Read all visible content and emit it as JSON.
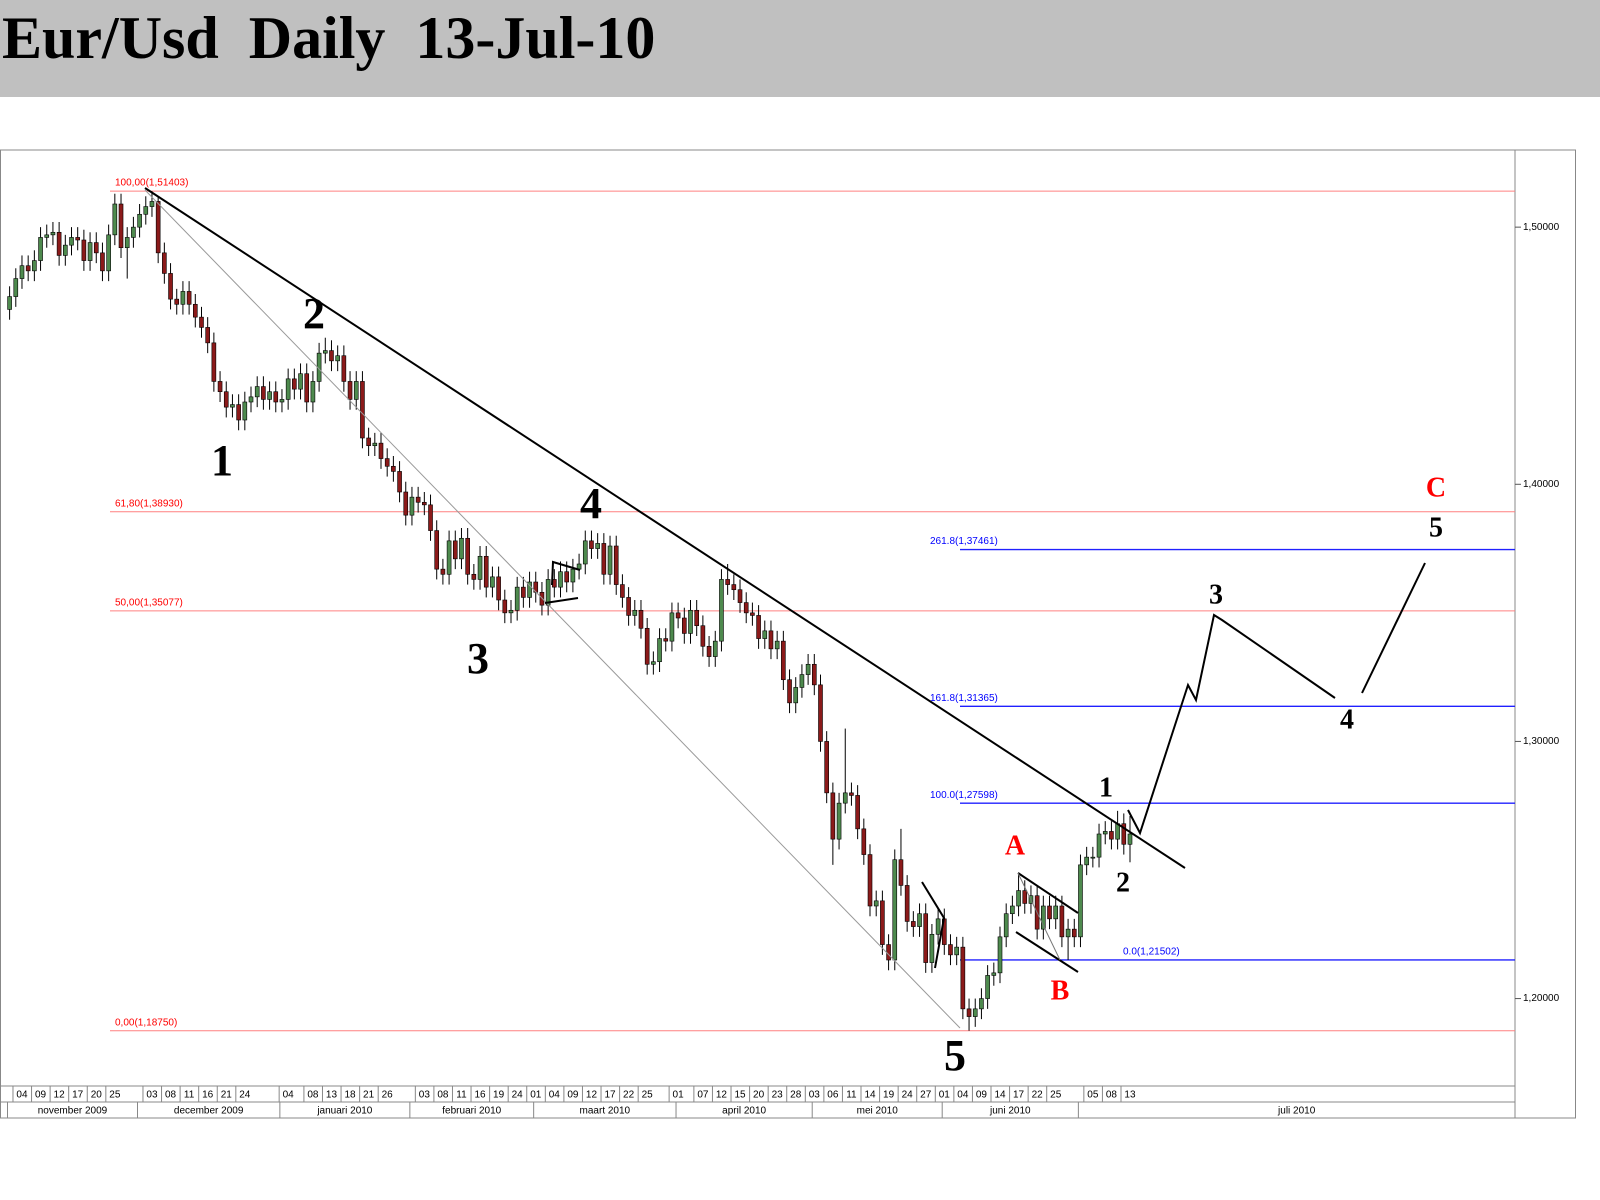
{
  "chart_data": {
    "type": "candlestick",
    "title": "Eur/Usd  Daily  13-Jul-10",
    "ylim": [
      1.166,
      1.53
    ],
    "yticks": [
      {
        "value": 1.2,
        "label": "1,20000"
      },
      {
        "value": 1.3,
        "label": "1,30000"
      },
      {
        "value": 1.4,
        "label": "1,40000"
      },
      {
        "value": 1.5,
        "label": "1,50000"
      }
    ],
    "up_color": "#4e8a4e",
    "down_color": "#8b1a1a",
    "categories": [
      null,
      null,
      "04",
      null,
      null,
      "09",
      null,
      null,
      "12",
      null,
      null,
      "17",
      null,
      null,
      "20",
      null,
      null,
      "25",
      null,
      null,
      null,
      null,
      null,
      "03",
      null,
      null,
      "08",
      null,
      null,
      "11",
      null,
      null,
      "16",
      null,
      null,
      "21",
      null,
      null,
      "24",
      null,
      null,
      null,
      null,
      null,
      null,
      "04",
      null,
      null,
      null,
      "08",
      null,
      null,
      "13",
      null,
      null,
      "18",
      null,
      null,
      "21",
      null,
      null,
      "26",
      null,
      null,
      null,
      null,
      null,
      "03",
      null,
      null,
      "08",
      null,
      null,
      "11",
      null,
      null,
      "16",
      null,
      null,
      "19",
      null,
      null,
      "24",
      null,
      null,
      "01",
      null,
      null,
      "04",
      null,
      null,
      "09",
      null,
      null,
      "12",
      null,
      null,
      "17",
      null,
      null,
      "22",
      null,
      null,
      "25",
      null,
      null,
      null,
      null,
      "01",
      null,
      null,
      null,
      "07",
      null,
      null,
      "12",
      null,
      null,
      "15",
      null,
      null,
      "20",
      null,
      null,
      "23",
      null,
      null,
      "28",
      null,
      null,
      "03",
      null,
      null,
      "06",
      null,
      null,
      "11",
      null,
      null,
      "14",
      null,
      null,
      "19",
      null,
      null,
      "24",
      null,
      null,
      "27",
      null,
      null,
      "01",
      null,
      null,
      "04",
      null,
      null,
      "09",
      null,
      null,
      "14",
      null,
      null,
      "17",
      null,
      null,
      "22",
      null,
      null,
      "25",
      null,
      null,
      null,
      null,
      null,
      "05",
      null,
      null,
      "08",
      null,
      null,
      "13"
    ],
    "months": [
      {
        "label": "november 2009",
        "start": 0
      },
      {
        "label": "december 2009",
        "start": 21
      },
      {
        "label": "januari 2010",
        "start": 44
      },
      {
        "label": "februari 2010",
        "start": 65
      },
      {
        "label": "maart 2010",
        "start": 85
      },
      {
        "label": "april 2010",
        "start": 108
      },
      {
        "label": "mei 2010",
        "start": 130
      },
      {
        "label": "juni 2010",
        "start": 151
      },
      {
        "label": "juli 2010",
        "start": 173
      }
    ],
    "candles": [
      [
        1.468,
        1.477,
        1.464,
        1.473
      ],
      [
        1.473,
        1.484,
        1.469,
        1.48
      ],
      [
        1.48,
        1.489,
        1.476,
        1.485
      ],
      [
        1.485,
        1.489,
        1.479,
        1.483
      ],
      [
        1.483,
        1.491,
        1.479,
        1.487
      ],
      [
        1.487,
        1.5,
        1.483,
        1.496
      ],
      [
        1.496,
        1.501,
        1.492,
        1.497
      ],
      [
        1.497,
        1.502,
        1.493,
        1.498
      ],
      [
        1.498,
        1.502,
        1.485,
        1.489
      ],
      [
        1.489,
        1.497,
        1.485,
        1.493
      ],
      [
        1.493,
        1.5,
        1.489,
        1.496
      ],
      [
        1.496,
        1.5,
        1.491,
        1.495
      ],
      [
        1.495,
        1.499,
        1.483,
        1.487
      ],
      [
        1.487,
        1.498,
        1.483,
        1.494
      ],
      [
        1.494,
        1.498,
        1.486,
        1.49
      ],
      [
        1.49,
        1.494,
        1.479,
        1.483
      ],
      [
        1.483,
        1.501,
        1.479,
        1.497
      ],
      [
        1.497,
        1.513,
        1.493,
        1.509
      ],
      [
        1.509,
        1.513,
        1.488,
        1.492
      ],
      [
        1.492,
        1.5,
        1.48,
        1.496
      ],
      [
        1.496,
        1.504,
        1.492,
        1.5
      ],
      [
        1.5,
        1.509,
        1.496,
        1.505
      ],
      [
        1.505,
        1.512,
        1.501,
        1.508
      ],
      [
        1.508,
        1.514,
        1.504,
        1.51
      ],
      [
        1.51,
        1.512,
        1.486,
        1.49
      ],
      [
        1.49,
        1.494,
        1.478,
        1.482
      ],
      [
        1.482,
        1.486,
        1.468,
        1.472
      ],
      [
        1.472,
        1.476,
        1.466,
        1.47
      ],
      [
        1.47,
        1.479,
        1.466,
        1.475
      ],
      [
        1.475,
        1.479,
        1.466,
        1.47
      ],
      [
        1.47,
        1.474,
        1.461,
        1.465
      ],
      [
        1.465,
        1.469,
        1.457,
        1.461
      ],
      [
        1.461,
        1.465,
        1.451,
        1.455
      ],
      [
        1.455,
        1.459,
        1.436,
        1.44
      ],
      [
        1.44,
        1.444,
        1.432,
        1.436
      ],
      [
        1.436,
        1.44,
        1.426,
        1.43
      ],
      [
        1.43,
        1.435,
        1.426,
        1.431
      ],
      [
        1.431,
        1.435,
        1.421,
        1.425
      ],
      [
        1.425,
        1.436,
        1.421,
        1.432
      ],
      [
        1.432,
        1.438,
        1.428,
        1.434
      ],
      [
        1.434,
        1.442,
        1.43,
        1.438
      ],
      [
        1.438,
        1.442,
        1.429,
        1.433
      ],
      [
        1.433,
        1.44,
        1.429,
        1.436
      ],
      [
        1.436,
        1.44,
        1.428,
        1.432
      ],
      [
        1.432,
        1.437,
        1.428,
        1.433
      ],
      [
        1.433,
        1.445,
        1.429,
        1.441
      ],
      [
        1.441,
        1.445,
        1.433,
        1.437
      ],
      [
        1.437,
        1.447,
        1.433,
        1.443
      ],
      [
        1.443,
        1.447,
        1.428,
        1.432
      ],
      [
        1.432,
        1.444,
        1.428,
        1.44
      ],
      [
        1.44,
        1.455,
        1.436,
        1.451
      ],
      [
        1.451,
        1.457,
        1.447,
        1.452
      ],
      [
        1.452,
        1.456,
        1.444,
        1.448
      ],
      [
        1.448,
        1.454,
        1.444,
        1.45
      ],
      [
        1.45,
        1.454,
        1.436,
        1.44
      ],
      [
        1.44,
        1.444,
        1.429,
        1.433
      ],
      [
        1.433,
        1.444,
        1.429,
        1.44
      ],
      [
        1.44,
        1.444,
        1.414,
        1.418
      ],
      [
        1.418,
        1.422,
        1.411,
        1.415
      ],
      [
        1.415,
        1.42,
        1.411,
        1.416
      ],
      [
        1.416,
        1.42,
        1.406,
        1.41
      ],
      [
        1.41,
        1.414,
        1.403,
        1.407
      ],
      [
        1.407,
        1.411,
        1.401,
        1.405
      ],
      [
        1.405,
        1.409,
        1.393,
        1.397
      ],
      [
        1.397,
        1.401,
        1.384,
        1.388
      ],
      [
        1.388,
        1.399,
        1.384,
        1.395
      ],
      [
        1.395,
        1.399,
        1.389,
        1.393
      ],
      [
        1.393,
        1.397,
        1.388,
        1.392
      ],
      [
        1.392,
        1.396,
        1.378,
        1.382
      ],
      [
        1.382,
        1.386,
        1.363,
        1.367
      ],
      [
        1.367,
        1.371,
        1.361,
        1.365
      ],
      [
        1.365,
        1.382,
        1.361,
        1.378
      ],
      [
        1.378,
        1.382,
        1.367,
        1.371
      ],
      [
        1.371,
        1.383,
        1.367,
        1.379
      ],
      [
        1.379,
        1.383,
        1.361,
        1.365
      ],
      [
        1.365,
        1.369,
        1.359,
        1.363
      ],
      [
        1.363,
        1.376,
        1.359,
        1.372
      ],
      [
        1.372,
        1.376,
        1.356,
        1.36
      ],
      [
        1.36,
        1.368,
        1.356,
        1.364
      ],
      [
        1.364,
        1.368,
        1.351,
        1.355
      ],
      [
        1.355,
        1.359,
        1.346,
        1.35
      ],
      [
        1.35,
        1.355,
        1.346,
        1.351
      ],
      [
        1.351,
        1.364,
        1.347,
        1.36
      ],
      [
        1.36,
        1.364,
        1.352,
        1.356
      ],
      [
        1.356,
        1.366,
        1.352,
        1.362
      ],
      [
        1.362,
        1.366,
        1.354,
        1.358
      ],
      [
        1.358,
        1.362,
        1.349,
        1.353
      ],
      [
        1.353,
        1.367,
        1.349,
        1.363
      ],
      [
        1.363,
        1.367,
        1.356,
        1.36
      ],
      [
        1.36,
        1.37,
        1.356,
        1.366
      ],
      [
        1.366,
        1.37,
        1.358,
        1.362
      ],
      [
        1.362,
        1.371,
        1.358,
        1.367
      ],
      [
        1.367,
        1.373,
        1.363,
        1.369
      ],
      [
        1.369,
        1.382,
        1.365,
        1.378
      ],
      [
        1.378,
        1.382,
        1.371,
        1.375
      ],
      [
        1.375,
        1.381,
        1.371,
        1.377
      ],
      [
        1.377,
        1.381,
        1.361,
        1.365
      ],
      [
        1.365,
        1.38,
        1.361,
        1.376
      ],
      [
        1.376,
        1.38,
        1.357,
        1.361
      ],
      [
        1.361,
        1.365,
        1.352,
        1.356
      ],
      [
        1.356,
        1.36,
        1.345,
        1.349
      ],
      [
        1.349,
        1.355,
        1.345,
        1.351
      ],
      [
        1.351,
        1.355,
        1.34,
        1.344
      ],
      [
        1.344,
        1.348,
        1.326,
        1.33
      ],
      [
        1.33,
        1.335,
        1.326,
        1.331
      ],
      [
        1.331,
        1.344,
        1.327,
        1.34
      ],
      [
        1.34,
        1.344,
        1.335,
        1.339
      ],
      [
        1.339,
        1.354,
        1.335,
        1.35
      ],
      [
        1.35,
        1.354,
        1.344,
        1.348
      ],
      [
        1.348,
        1.352,
        1.338,
        1.342
      ],
      [
        1.342,
        1.355,
        1.338,
        1.351
      ],
      [
        1.351,
        1.355,
        1.341,
        1.345
      ],
      [
        1.345,
        1.349,
        1.333,
        1.337
      ],
      [
        1.337,
        1.341,
        1.329,
        1.333
      ],
      [
        1.333,
        1.343,
        1.329,
        1.339
      ],
      [
        1.339,
        1.367,
        1.335,
        1.363
      ],
      [
        1.363,
        1.369,
        1.357,
        1.361
      ],
      [
        1.361,
        1.365,
        1.355,
        1.359
      ],
      [
        1.359,
        1.363,
        1.35,
        1.354
      ],
      [
        1.354,
        1.358,
        1.346,
        1.35
      ],
      [
        1.35,
        1.354,
        1.345,
        1.349
      ],
      [
        1.349,
        1.353,
        1.336,
        1.34
      ],
      [
        1.34,
        1.347,
        1.336,
        1.343
      ],
      [
        1.343,
        1.347,
        1.332,
        1.336
      ],
      [
        1.336,
        1.343,
        1.332,
        1.339
      ],
      [
        1.339,
        1.343,
        1.32,
        1.324
      ],
      [
        1.324,
        1.328,
        1.311,
        1.315
      ],
      [
        1.315,
        1.325,
        1.311,
        1.321
      ],
      [
        1.321,
        1.33,
        1.317,
        1.326
      ],
      [
        1.326,
        1.334,
        1.322,
        1.33
      ],
      [
        1.33,
        1.334,
        1.318,
        1.322
      ],
      [
        1.322,
        1.326,
        1.296,
        1.3
      ],
      [
        1.3,
        1.304,
        1.276,
        1.28
      ],
      [
        1.28,
        1.284,
        1.252,
        1.262
      ],
      [
        1.262,
        1.28,
        1.258,
        1.276
      ],
      [
        1.276,
        1.305,
        1.272,
        1.28
      ],
      [
        1.28,
        1.284,
        1.275,
        1.279
      ],
      [
        1.279,
        1.283,
        1.262,
        1.266
      ],
      [
        1.266,
        1.27,
        1.252,
        1.256
      ],
      [
        1.256,
        1.26,
        1.232,
        1.236
      ],
      [
        1.236,
        1.242,
        1.232,
        1.238
      ],
      [
        1.238,
        1.242,
        1.217,
        1.221
      ],
      [
        1.221,
        1.225,
        1.211,
        1.215
      ],
      [
        1.215,
        1.258,
        1.211,
        1.254
      ],
      [
        1.254,
        1.266,
        1.24,
        1.244
      ],
      [
        1.244,
        1.248,
        1.226,
        1.23
      ],
      [
        1.23,
        1.234,
        1.224,
        1.228
      ],
      [
        1.228,
        1.237,
        1.224,
        1.233
      ],
      [
        1.233,
        1.237,
        1.21,
        1.214
      ],
      [
        1.214,
        1.229,
        1.21,
        1.225
      ],
      [
        1.225,
        1.235,
        1.221,
        1.231
      ],
      [
        1.231,
        1.235,
        1.217,
        1.221
      ],
      [
        1.221,
        1.225,
        1.213,
        1.217
      ],
      [
        1.217,
        1.224,
        1.213,
        1.22
      ],
      [
        1.22,
        1.224,
        1.192,
        1.196
      ],
      [
        1.196,
        1.2,
        1.1875,
        1.193
      ],
      [
        1.193,
        1.2,
        1.189,
        1.196
      ],
      [
        1.196,
        1.204,
        1.192,
        1.2
      ],
      [
        1.2,
        1.213,
        1.196,
        1.209
      ],
      [
        1.209,
        1.214,
        1.205,
        1.21
      ],
      [
        1.21,
        1.228,
        1.206,
        1.224
      ],
      [
        1.224,
        1.237,
        1.22,
        1.233
      ],
      [
        1.233,
        1.24,
        1.229,
        1.236
      ],
      [
        1.236,
        1.249,
        1.232,
        1.242
      ],
      [
        1.242,
        1.246,
        1.233,
        1.237
      ],
      [
        1.237,
        1.244,
        1.233,
        1.24
      ],
      [
        1.24,
        1.244,
        1.223,
        1.227
      ],
      [
        1.227,
        1.24,
        1.223,
        1.236
      ],
      [
        1.236,
        1.24,
        1.227,
        1.231
      ],
      [
        1.231,
        1.24,
        1.227,
        1.236
      ],
      [
        1.236,
        1.24,
        1.22,
        1.224
      ],
      [
        1.224,
        1.231,
        1.215,
        1.227
      ],
      [
        1.227,
        1.231,
        1.22,
        1.224
      ],
      [
        1.224,
        1.256,
        1.22,
        1.252
      ],
      [
        1.252,
        1.259,
        1.248,
        1.255
      ],
      [
        1.255,
        1.259,
        1.251,
        1.255
      ],
      [
        1.255,
        1.268,
        1.251,
        1.264
      ],
      [
        1.264,
        1.269,
        1.26,
        1.265
      ],
      [
        1.265,
        1.269,
        1.258,
        1.262
      ],
      [
        1.262,
        1.273,
        1.258,
        1.268
      ],
      [
        1.268,
        1.272,
        1.256,
        1.26
      ],
      [
        1.26,
        1.271,
        1.253,
        1.264
      ]
    ],
    "fib_levels": [
      {
        "value": 1.51403,
        "label": "100,00(1,51403)",
        "color": "#ff0000"
      },
      {
        "value": 1.3893,
        "label": "61,80(1,38930)",
        "color": "#ff0000"
      },
      {
        "value": 1.35077,
        "label": "50,00(1,35077)",
        "color": "#ff0000"
      },
      {
        "value": 1.1875,
        "label": "0,00(1,18750)",
        "color": "#ff0000"
      },
      {
        "value": 1.37461,
        "label": "261.8(1,37461)",
        "color": "#0000ff"
      },
      {
        "value": 1.31365,
        "label": "161.8(1,31365)",
        "color": "#0000ff"
      },
      {
        "value": 1.27598,
        "label": "100.0(1,27598)",
        "color": "#0000ff"
      },
      {
        "value": 1.21502,
        "label": "0.0(1,21502)",
        "color": "#0000ff"
      }
    ],
    "wave_labels": [
      "1",
      "2",
      "3",
      "4",
      "5",
      "A",
      "B",
      "C",
      "1",
      "2",
      "3",
      "4",
      "5"
    ]
  }
}
